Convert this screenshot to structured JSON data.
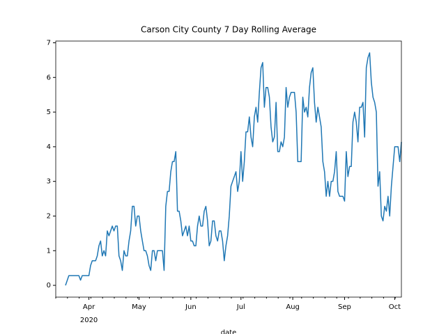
{
  "chart_data": {
    "type": "line",
    "title": "Carson City County 7 Day Rolling Average",
    "x_label": "date",
    "x_year": "2020",
    "categories": [
      null,
      null,
      null,
      null,
      null,
      null,
      null,
      null,
      null,
      null,
      null,
      null,
      null,
      null,
      "Apr",
      null,
      null,
      null,
      null,
      null,
      null,
      null,
      null,
      null,
      null,
      null,
      null,
      null,
      null,
      null,
      null,
      null,
      null,
      null,
      null,
      null,
      null,
      null,
      null,
      null,
      null,
      null,
      null,
      null,
      "May",
      null,
      null,
      null,
      null,
      null,
      null,
      null,
      null,
      null,
      null,
      null,
      null,
      null,
      null,
      null,
      null,
      null,
      null,
      null,
      null,
      null,
      null,
      null,
      null,
      null,
      null,
      null,
      null,
      null,
      null,
      "Jun",
      null,
      null,
      null,
      null,
      null,
      null,
      null,
      null,
      null,
      null,
      null,
      null,
      null,
      null,
      null,
      null,
      null,
      null,
      null,
      null,
      null,
      null,
      null,
      null,
      null,
      null,
      null,
      null,
      null,
      "Jul",
      null,
      null,
      null,
      null,
      null,
      null,
      null,
      null,
      null,
      null,
      null,
      null,
      null,
      null,
      null,
      null,
      null,
      null,
      null,
      null,
      null,
      null,
      null,
      null,
      null,
      null,
      null,
      null,
      null,
      null,
      "Aug",
      null,
      null,
      null,
      null,
      null,
      null,
      null,
      null,
      null,
      null,
      null,
      null,
      null,
      null,
      null,
      null,
      null,
      null,
      null,
      null,
      null,
      null,
      null,
      null,
      null,
      null,
      null,
      null,
      null,
      null,
      "Sep",
      null,
      null,
      null,
      null,
      null,
      null,
      null,
      null,
      null,
      null,
      null,
      null,
      null,
      null,
      null,
      null,
      null,
      null,
      null,
      null,
      null,
      null,
      null,
      null,
      null,
      null,
      null,
      null,
      null,
      "Oct",
      null,
      null,
      null,
      null
    ],
    "series": [
      {
        "color": "#1f77b4",
        "values": [
          0,
          0.14,
          0.28,
          0.28,
          0.28,
          0.28,
          0.28,
          0.28,
          0.28,
          0.15,
          0.28,
          0.28,
          0.28,
          0.28,
          0.28,
          0.57,
          0.71,
          0.71,
          0.71,
          0.85,
          1.14,
          1.28,
          0.85,
          1.0,
          0.85,
          1.57,
          1.43,
          1.57,
          1.71,
          1.57,
          1.71,
          1.71,
          0.85,
          0.71,
          0.43,
          1.0,
          0.85,
          0.85,
          1.28,
          1.57,
          2.28,
          2.28,
          1.71,
          2.0,
          2.0,
          1.57,
          1.28,
          1.0,
          1.0,
          0.85,
          0.57,
          0.43,
          1.0,
          1.0,
          0.71,
          1.0,
          1.0,
          1.0,
          1.0,
          0.43,
          2.28,
          2.71,
          2.71,
          3.28,
          3.57,
          3.57,
          3.86,
          2.14,
          2.14,
          1.86,
          1.43,
          1.57,
          1.71,
          1.43,
          1.71,
          1.28,
          1.28,
          1.14,
          1.14,
          1.71,
          2.0,
          1.71,
          1.71,
          2.14,
          2.28,
          1.86,
          1.14,
          1.28,
          1.86,
          1.86,
          1.43,
          1.28,
          1.57,
          1.57,
          1.28,
          0.71,
          1.14,
          1.43,
          2.0,
          2.86,
          3.0,
          3.14,
          3.28,
          2.71,
          3.0,
          3.86,
          3.0,
          3.57,
          4.43,
          4.43,
          4.86,
          4.28,
          4.0,
          4.86,
          5.14,
          4.71,
          5.57,
          6.28,
          6.43,
          5.14,
          5.71,
          5.71,
          5.43,
          4.57,
          4.14,
          4.28,
          5.28,
          3.86,
          3.86,
          4.14,
          4.0,
          4.28,
          5.71,
          5.14,
          5.43,
          5.57,
          5.57,
          5.57,
          5.0,
          3.57,
          3.57,
          3.57,
          5.43,
          5.0,
          5.14,
          4.86,
          5.71,
          6.14,
          6.28,
          5.28,
          4.71,
          5.14,
          4.86,
          4.57,
          3.57,
          3.28,
          2.57,
          3.0,
          2.57,
          3.0,
          3.0,
          3.28,
          3.86,
          2.71,
          2.57,
          2.57,
          2.57,
          2.43,
          3.86,
          3.14,
          3.43,
          3.43,
          4.71,
          5.0,
          4.71,
          4.14,
          5.14,
          5.14,
          5.28,
          4.28,
          6.28,
          6.57,
          6.71,
          5.86,
          5.43,
          5.28,
          5.0,
          2.86,
          3.28,
          2.0,
          1.86,
          2.28,
          2.14,
          2.57,
          2.0,
          2.86,
          3.43,
          4.0,
          4.0,
          4.0,
          3.57,
          4.14
        ]
      }
    ],
    "ylim": [
      -0.34,
      7.05
    ],
    "yticks": [
      0,
      1,
      2,
      3,
      4,
      5,
      6,
      7
    ]
  }
}
